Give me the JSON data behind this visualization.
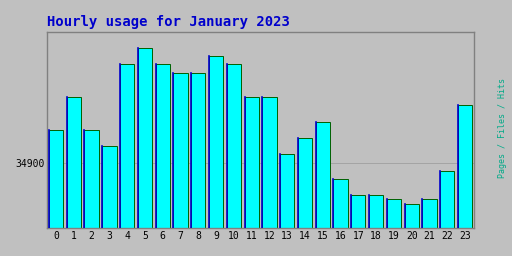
{
  "title": "Hourly usage for January 2023",
  "title_color": "#0000cc",
  "title_fontsize": 10,
  "background_color": "#c0c0c0",
  "plot_bg_color": "#c0c0c0",
  "bar_fill_color": "#00ffff",
  "bar_edge_color": "#006000",
  "bar_left_edge_color": "#0000cc",
  "ylabel": "34900",
  "ylabel_color": "#000000",
  "right_label": "Pages / Files / Hits",
  "right_label_color": "#00aa88",
  "categories": [
    0,
    1,
    2,
    3,
    4,
    5,
    6,
    7,
    8,
    9,
    10,
    11,
    12,
    13,
    14,
    15,
    16,
    17,
    18,
    19,
    20,
    21,
    22,
    23
  ],
  "values": [
    34920,
    34940,
    34920,
    34910,
    34960,
    34970,
    34960,
    34955,
    34955,
    34965,
    34960,
    34940,
    34940,
    34905,
    34915,
    34925,
    34890,
    34880,
    34880,
    34878,
    34875,
    34878,
    34895,
    34935
  ],
  "ymin": 34860,
  "ymax": 34980,
  "ytick_val": 34900,
  "xlim_min": -0.5,
  "xlim_max": 23.5,
  "bar_width": 0.8
}
